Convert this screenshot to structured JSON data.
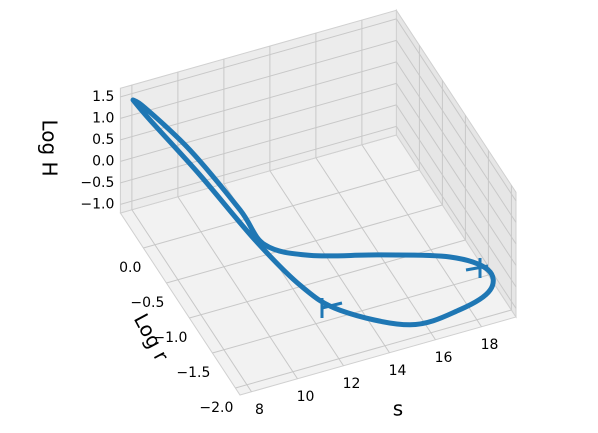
{
  "chart_data": {
    "type": "line3d",
    "xlabel": "s",
    "ylabel": "Log r",
    "zlabel": "Log H",
    "color": "#1f77b4",
    "grid": true,
    "x": [
      7.89,
      8.24,
      9.26,
      10.44,
      11.42,
      12.59,
      15.01,
      17.1,
      18.57,
      18.78,
      17.49,
      14.76,
      12.09,
      10.58,
      10.2,
      9.29,
      8.19,
      7.89
    ],
    "y": [
      0.42,
      0.22,
      -0.35,
      -0.96,
      -1.45,
      -1.73,
      -2.04,
      -2.08,
      -2.0,
      -1.85,
      -1.67,
      -1.51,
      -1.33,
      -1.1,
      -0.75,
      -0.12,
      0.31,
      0.42
    ],
    "z": [
      1.5,
      1.3,
      0.8,
      0.1,
      -0.3,
      -0.6,
      -0.8,
      -0.7,
      -0.6,
      -0.4,
      -0.2,
      0.0,
      0.1,
      0.2,
      0.5,
      1.0,
      1.45,
      1.5
    ],
    "xlim": [
      7.5,
      19.5
    ],
    "ylim": [
      -2.1,
      0.5
    ],
    "zlim": [
      -1.2,
      1.7
    ],
    "xticks": [
      8,
      10,
      12,
      14,
      16,
      18
    ],
    "yticks": [
      {
        "value": -2,
        "label": "−2.0"
      },
      {
        "value": -1.5,
        "label": "−1.5"
      },
      {
        "value": -1,
        "label": "−1.0"
      },
      {
        "value": -0.5,
        "label": "−0.5"
      },
      {
        "value": 0,
        "label": "0.0"
      }
    ],
    "zticks": [
      {
        "value": -1,
        "label": "−1.0"
      },
      {
        "value": -0.5,
        "label": "−0.5"
      },
      {
        "value": 0,
        "label": "0.0"
      },
      {
        "value": 0.5,
        "label": "0.5"
      },
      {
        "value": 1,
        "label": "1.0"
      },
      {
        "value": 1.5,
        "label": "1.5"
      }
    ]
  }
}
